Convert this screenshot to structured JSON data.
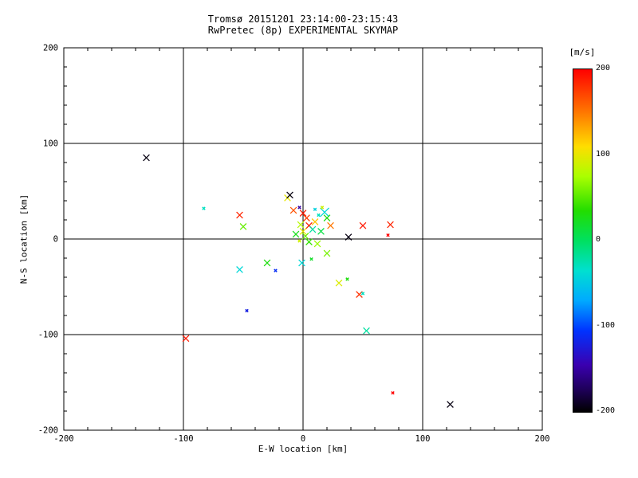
{
  "title": {
    "line1": "Tromsø 20151201 23:14:00-23:15:43",
    "line2": "RwPretec (8p) EXPERIMENTAL SKYMAP"
  },
  "axes": {
    "xlabel": "E-W location [km]",
    "ylabel": "N-S location [km]",
    "xlim": [
      -200,
      200
    ],
    "ylim": [
      -200,
      200
    ],
    "xticks": [
      -200,
      -100,
      0,
      100,
      200
    ],
    "yticks": [
      -200,
      -100,
      0,
      100,
      200
    ],
    "minor_tick_step": 20,
    "grid_lines": [
      -100,
      0,
      100
    ],
    "grid_color": "#000000",
    "frame_color": "#000000"
  },
  "colorbar": {
    "label": "[m/s]",
    "min": -200,
    "max": 200,
    "ticks": [
      200,
      100,
      0,
      -100,
      -200
    ],
    "stops": [
      [
        200,
        "#ff0000"
      ],
      [
        150,
        "#ff7700"
      ],
      [
        110,
        "#ffdd00"
      ],
      [
        75,
        "#aaff00"
      ],
      [
        35,
        "#22dd00"
      ],
      [
        0,
        "#00e060"
      ],
      [
        -35,
        "#00e0d0"
      ],
      [
        -70,
        "#00aaff"
      ],
      [
        -105,
        "#0033ff"
      ],
      [
        -145,
        "#3a00b0"
      ],
      [
        -175,
        "#1d0055"
      ],
      [
        -200,
        "#000000"
      ]
    ]
  },
  "chart_data": {
    "type": "scatter",
    "marker": "x",
    "title": "Tromsø 20151201 23:14:00-23:15:43 — RwPretec (8p) EXPERIMENTAL SKYMAP",
    "xlabel": "E-W location [km]",
    "ylabel": "N-S location [km]",
    "xlim": [
      -200,
      200
    ],
    "ylim": [
      -200,
      200
    ],
    "grid": true,
    "legend": "colorbar [m/s], -200 to 200",
    "point_columns": [
      "x_km",
      "y_km",
      "velocity_ms",
      "size_class"
    ],
    "points": [
      [
        -131,
        85,
        -195,
        2
      ],
      [
        -83,
        32,
        -30,
        1
      ],
      [
        -53,
        25,
        185,
        2
      ],
      [
        -50,
        13,
        55,
        2
      ],
      [
        -13,
        43,
        100,
        2
      ],
      [
        -11,
        46,
        -195,
        2
      ],
      [
        -8,
        30,
        165,
        2
      ],
      [
        -3,
        33,
        -150,
        1
      ],
      [
        0,
        27,
        190,
        2
      ],
      [
        3,
        22,
        175,
        2
      ],
      [
        5,
        14,
        190,
        2
      ],
      [
        -2,
        15,
        80,
        2
      ],
      [
        0,
        8,
        100,
        2
      ],
      [
        2,
        3,
        55,
        2
      ],
      [
        -6,
        5,
        25,
        2
      ],
      [
        -3,
        -2,
        90,
        1
      ],
      [
        5,
        -3,
        40,
        2
      ],
      [
        8,
        10,
        -20,
        2
      ],
      [
        10,
        18,
        120,
        2
      ],
      [
        13,
        25,
        -30,
        1
      ],
      [
        18,
        28,
        -40,
        3
      ],
      [
        20,
        22,
        30,
        2
      ],
      [
        23,
        14,
        150,
        2
      ],
      [
        15,
        8,
        10,
        2
      ],
      [
        12,
        -5,
        70,
        2
      ],
      [
        20,
        -15,
        60,
        2
      ],
      [
        7,
        -21,
        20,
        1
      ],
      [
        -1,
        -25,
        -40,
        2
      ],
      [
        -30,
        -25,
        30,
        2
      ],
      [
        -53,
        -32,
        -40,
        2
      ],
      [
        -23,
        -33,
        -110,
        1
      ],
      [
        -47,
        -75,
        -120,
        1
      ],
      [
        -98,
        -104,
        190,
        2
      ],
      [
        30,
        -46,
        95,
        2
      ],
      [
        37,
        -42,
        30,
        1
      ],
      [
        47,
        -58,
        180,
        2
      ],
      [
        50,
        -57,
        -30,
        1
      ],
      [
        38,
        2,
        -195,
        2
      ],
      [
        50,
        14,
        190,
        2
      ],
      [
        73,
        15,
        185,
        2
      ],
      [
        71,
        4,
        200,
        1
      ],
      [
        53,
        -96,
        -20,
        2
      ],
      [
        75,
        -161,
        200,
        1
      ],
      [
        123,
        -173,
        -195,
        2
      ],
      [
        10,
        31,
        -45,
        1
      ],
      [
        16,
        33,
        90,
        1
      ]
    ]
  }
}
